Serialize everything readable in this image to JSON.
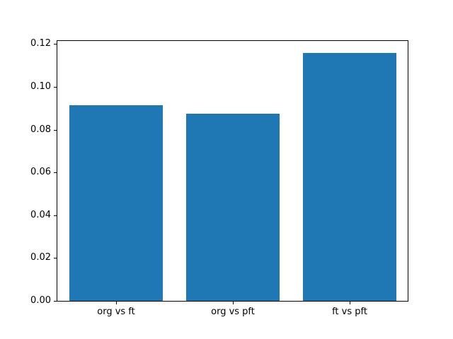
{
  "chart_data": {
    "type": "bar",
    "categories": [
      "org vs ft",
      "org vs pft",
      "ft vs pft"
    ],
    "values": [
      0.0918,
      0.0878,
      0.1162
    ],
    "title": "",
    "xlabel": "",
    "ylabel": "",
    "ylim": [
      0,
      0.1218
    ],
    "yticks": [
      0.0,
      0.02,
      0.04,
      0.06,
      0.08,
      0.1,
      0.12
    ],
    "ytick_labels": [
      "0.00",
      "0.02",
      "0.04",
      "0.06",
      "0.08",
      "0.10",
      "0.12"
    ],
    "bar_width_fraction": 0.8,
    "grid": false,
    "legend": null,
    "colors": {
      "bar": "#1f77b4",
      "axis": "#000000",
      "text": "#000000",
      "background": "#ffffff"
    }
  }
}
